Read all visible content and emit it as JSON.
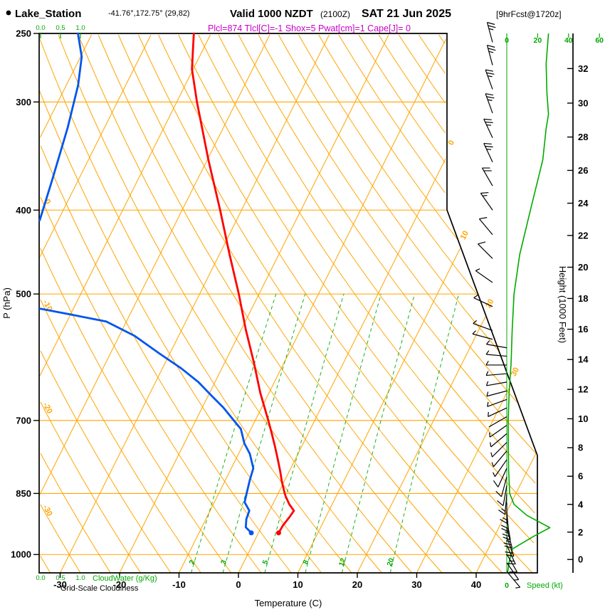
{
  "header": {
    "station": "Lake_Station",
    "coords": "-41.76°,172.75° (29,82)",
    "valid_main": "Valid 1000 NZDT",
    "valid_zulu": "(2100Z)",
    "valid_date": "SAT 21 Jun 2025",
    "forecast_tag": "[9hrFcst@1720z]",
    "indices": "Plcl=874 Tlcl[C]=-1 Shox=5 Pwat[cm]=1 Cape[J]= 0"
  },
  "axes": {
    "pressure_label": "P (hPa)",
    "pressure_ticks": [
      250,
      300,
      400,
      500,
      700,
      850,
      1000
    ],
    "temperature_label": "Temperature (C)",
    "temperature_ticks": [
      -30,
      -20,
      -10,
      0,
      10,
      20,
      30,
      40
    ],
    "height_label": "Height (1000 Feet)",
    "height_ticks": [
      0,
      2,
      4,
      6,
      8,
      10,
      12,
      14,
      16,
      18,
      20,
      22,
      24,
      26,
      28,
      30,
      32
    ],
    "speed_label": "Speed (kt)",
    "speed_ticks": [
      0,
      20,
      40,
      60
    ],
    "cloudwater_label": "CloudWater (g/Kg)",
    "cloudwater_ticks": [
      "0.0",
      "0.5",
      "1.0"
    ],
    "cloudiness_label": "Grid-Scale Cloudiness"
  },
  "chart_data": {
    "type": "skewt-log-p-sounding",
    "pressure_range_hpa": [
      250,
      1050
    ],
    "isotherm_labels": [
      0,
      10,
      20,
      30
    ],
    "dry_adiabat_labels": [
      0,
      -10,
      -20,
      -30
    ],
    "mixing_ratio_lines": [
      2,
      3,
      5,
      8,
      12,
      20
    ],
    "temperature_profile": [
      [
        944,
        3.4
      ],
      [
        925,
        3.5
      ],
      [
        905,
        3.9
      ],
      [
        890,
        4.1
      ],
      [
        875,
        2.8
      ],
      [
        858,
        1.6
      ],
      [
        850,
        1.1
      ],
      [
        825,
        -0.3
      ],
      [
        800,
        -1.6
      ],
      [
        775,
        -3.0
      ],
      [
        750,
        -4.5
      ],
      [
        725,
        -6.1
      ],
      [
        700,
        -7.8
      ],
      [
        650,
        -11.5
      ],
      [
        600,
        -15.1
      ],
      [
        550,
        -19.2
      ],
      [
        500,
        -23.4
      ],
      [
        450,
        -28.3
      ],
      [
        400,
        -33.6
      ],
      [
        350,
        -39.8
      ],
      [
        300,
        -46.6
      ],
      [
        275,
        -50.2
      ],
      [
        250,
        -52.9
      ]
    ],
    "dewpoint_profile": [
      [
        944,
        -1.2
      ],
      [
        930,
        -2.6
      ],
      [
        910,
        -3.2
      ],
      [
        890,
        -3.4
      ],
      [
        870,
        -4.9
      ],
      [
        850,
        -5.3
      ],
      [
        820,
        -5.9
      ],
      [
        795,
        -6.3
      ],
      [
        765,
        -8.1
      ],
      [
        744,
        -9.9
      ],
      [
        716,
        -11.7
      ],
      [
        700,
        -13.6
      ],
      [
        676,
        -16.5
      ],
      [
        657,
        -19.2
      ],
      [
        632,
        -22.8
      ],
      [
        609,
        -26.9
      ],
      [
        586,
        -31.7
      ],
      [
        559,
        -37.4
      ],
      [
        538,
        -43.4
      ],
      [
        528,
        -50.0
      ],
      [
        520,
        -55.6
      ]
    ],
    "dewpoint_profile_upper": [
      [
        411,
        -63.1
      ],
      [
        369,
        -64.4
      ],
      [
        321,
        -66.2
      ],
      [
        287,
        -68.0
      ],
      [
        266,
        -69.8
      ],
      [
        250,
        -72.4
      ]
    ],
    "speed_profile": [
      [
        1050,
        0.5
      ],
      [
        1020,
        1.5
      ],
      [
        985,
        3.7
      ],
      [
        952,
        17.7
      ],
      [
        931,
        27.9
      ],
      [
        901,
        13
      ],
      [
        875,
        4.7
      ],
      [
        850,
        1.9
      ],
      [
        800,
        1.2
      ],
      [
        750,
        1.0
      ],
      [
        700,
        0.9
      ],
      [
        650,
        1.5
      ],
      [
        600,
        2.8
      ],
      [
        550,
        3.5
      ],
      [
        500,
        4.7
      ],
      [
        450,
        8.4
      ],
      [
        400,
        15.3
      ],
      [
        350,
        23.3
      ],
      [
        322,
        25.5
      ],
      [
        310,
        27
      ],
      [
        293,
        26
      ],
      [
        271,
        25.5
      ],
      [
        250,
        27
      ]
    ],
    "wind_barbs": [
      [
        256,
        25,
        345
      ],
      [
        272,
        25,
        345
      ],
      [
        290,
        25,
        340
      ],
      [
        309,
        24,
        340
      ],
      [
        330,
        23,
        335
      ],
      [
        352,
        23,
        335
      ],
      [
        375,
        20,
        330
      ],
      [
        400,
        15,
        325
      ],
      [
        427,
        12,
        320
      ],
      [
        455,
        10,
        315
      ],
      [
        485,
        7,
        305
      ],
      [
        517,
        5,
        295
      ],
      [
        551,
        4,
        290
      ],
      [
        564,
        4,
        285
      ],
      [
        577,
        4,
        280
      ],
      [
        590,
        3,
        275
      ],
      [
        604,
        3,
        270
      ],
      [
        618,
        3,
        265
      ],
      [
        632,
        3,
        260
      ],
      [
        647,
        3,
        255
      ],
      [
        662,
        3,
        250
      ],
      [
        677,
        3,
        245
      ],
      [
        693,
        2,
        240
      ],
      [
        709,
        3,
        235
      ],
      [
        725,
        3,
        230
      ],
      [
        742,
        4,
        225
      ],
      [
        759,
        5,
        220
      ],
      [
        777,
        6,
        215
      ],
      [
        795,
        8,
        205
      ],
      [
        813,
        10,
        195
      ],
      [
        832,
        12,
        190
      ],
      [
        851,
        14,
        185
      ],
      [
        871,
        16,
        180
      ],
      [
        891,
        20,
        175
      ],
      [
        911,
        25,
        170
      ],
      [
        932,
        27,
        165
      ],
      [
        954,
        22,
        160
      ],
      [
        976,
        15,
        155
      ],
      [
        999,
        10,
        150
      ],
      [
        1022,
        6,
        145
      ],
      [
        1046,
        3,
        140
      ]
    ],
    "colors": {
      "temperature": "#FF0000",
      "dewpoint": "#0055EE",
      "wind_speed": "#00AA00",
      "grid": "#FFA500",
      "boundary": "#000000",
      "info": "#C800C8"
    }
  }
}
